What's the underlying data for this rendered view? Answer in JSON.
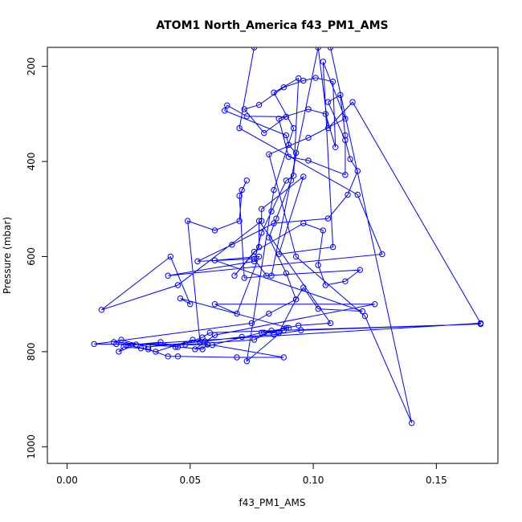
{
  "chart_data": {
    "type": "line",
    "title": "ATOM1 North_America f43_PM1_AMS",
    "xlabel": "f43_PM1_AMS",
    "ylabel": "Pressure (mbar)",
    "xlim": [
      -0.008,
      0.175
    ],
    "ylim": [
      1035,
      160
    ],
    "y_reversed": true,
    "xticks": [
      0.0,
      0.05,
      0.1,
      0.15
    ],
    "xtick_labels": [
      "0.00",
      "0.05",
      "0.10",
      "0.15"
    ],
    "yticks": [
      200,
      400,
      600,
      800,
      1000
    ],
    "ytick_labels": [
      "200",
      "400",
      "600",
      "800",
      "1000"
    ],
    "grid": false,
    "legend": "none",
    "marker": "open-circle",
    "color": "#0000ff",
    "series": [
      {
        "points": [
          [
            0.054,
            780
          ],
          [
            0.049,
            525
          ],
          [
            0.06,
            545
          ],
          [
            0.07,
            525
          ],
          [
            0.071,
            460
          ],
          [
            0.073,
            440
          ],
          [
            0.07,
            472
          ],
          [
            0.072,
            645
          ],
          [
            0.083,
            640
          ],
          [
            0.102,
            160
          ],
          [
            0.106,
            330
          ],
          [
            0.116,
            275
          ],
          [
            0.168,
            740
          ],
          [
            0.024,
            786
          ],
          [
            0.033,
            795
          ],
          [
            0.041,
            810
          ],
          [
            0.045,
            810
          ],
          [
            0.069,
            812
          ],
          [
            0.088,
            812
          ],
          [
            0.059,
            786
          ],
          [
            0.011,
            784
          ],
          [
            0.075,
            740
          ],
          [
            0.082,
            720
          ],
          [
            0.093,
            690
          ],
          [
            0.096,
            665
          ],
          [
            0.102,
            710
          ],
          [
            0.12,
            715
          ],
          [
            0.06,
            608
          ],
          [
            0.078,
            600
          ],
          [
            0.069,
            720
          ],
          [
            0.06,
            700
          ],
          [
            0.125,
            700
          ],
          [
            0.06,
            765
          ],
          [
            0.052,
            795
          ],
          [
            0.079,
            760
          ],
          [
            0.09,
            750
          ],
          [
            0.046,
            688
          ],
          [
            0.05,
            700
          ],
          [
            0.042,
            600
          ],
          [
            0.014,
            712
          ],
          [
            0.045,
            660
          ],
          [
            0.079,
            525
          ],
          [
            0.079,
            500
          ],
          [
            0.096,
            432
          ],
          [
            0.086,
            595
          ],
          [
            0.108,
            580
          ],
          [
            0.104,
            190
          ],
          [
            0.113,
            310
          ],
          [
            0.098,
            350
          ],
          [
            0.082,
            385
          ],
          [
            0.093,
            600
          ],
          [
            0.121,
            725
          ],
          [
            0.14,
            950
          ],
          [
            0.107,
            160
          ],
          [
            0.076,
            160
          ],
          [
            0.07,
            330
          ],
          [
            0.118,
            470
          ],
          [
            0.128,
            595
          ],
          [
            0.041,
            640
          ],
          [
            0.076,
            610
          ],
          [
            0.079,
            550
          ],
          [
            0.083,
            505
          ],
          [
            0.089,
            440
          ],
          [
            0.092,
            430
          ],
          [
            0.094,
            225
          ],
          [
            0.084,
            255
          ],
          [
            0.092,
            330
          ],
          [
            0.084,
            460
          ],
          [
            0.073,
            820
          ],
          [
            0.089,
            750
          ],
          [
            0.094,
            745
          ],
          [
            0.107,
            740
          ],
          [
            0.078,
            525
          ],
          [
            0.078,
            580
          ],
          [
            0.068,
            640
          ],
          [
            0.076,
            590
          ],
          [
            0.096,
            530
          ],
          [
            0.104,
            545
          ],
          [
            0.102,
            618
          ],
          [
            0.105,
            660
          ],
          [
            0.113,
            652
          ],
          [
            0.119,
            628
          ],
          [
            0.081,
            640
          ],
          [
            0.076,
            605
          ],
          [
            0.053,
            610
          ],
          [
            0.067,
            575
          ],
          [
            0.084,
            530
          ],
          [
            0.106,
            520
          ],
          [
            0.114,
            470
          ],
          [
            0.118,
            420
          ],
          [
            0.115,
            395
          ],
          [
            0.113,
            355
          ],
          [
            0.106,
            275
          ],
          [
            0.111,
            260
          ],
          [
            0.113,
            345
          ],
          [
            0.113,
            428
          ],
          [
            0.098,
            398
          ],
          [
            0.09,
            390
          ],
          [
            0.086,
            310
          ],
          [
            0.098,
            290
          ],
          [
            0.105,
            300
          ],
          [
            0.109,
            370
          ],
          [
            0.108,
            232
          ],
          [
            0.101,
            224
          ],
          [
            0.096,
            230
          ],
          [
            0.088,
            244
          ],
          [
            0.078,
            281
          ],
          [
            0.072,
            290
          ],
          [
            0.08,
            340
          ],
          [
            0.089,
            306
          ],
          [
            0.073,
            305
          ],
          [
            0.065,
            282
          ],
          [
            0.064,
            293
          ],
          [
            0.089,
            345
          ],
          [
            0.09,
            365
          ],
          [
            0.093,
            382
          ],
          [
            0.091,
            440
          ],
          [
            0.085,
            520
          ],
          [
            0.082,
            560
          ],
          [
            0.089,
            635
          ],
          [
            0.093,
            690
          ],
          [
            0.086,
            760
          ],
          [
            0.08,
            760
          ],
          [
            0.088,
            755
          ],
          [
            0.058,
            760
          ],
          [
            0.055,
            770
          ],
          [
            0.044,
            790
          ],
          [
            0.038,
            780
          ],
          [
            0.028,
            785
          ],
          [
            0.021,
            800
          ],
          [
            0.023,
            790
          ],
          [
            0.03,
            793
          ],
          [
            0.036,
            800
          ],
          [
            0.051,
            775
          ],
          [
            0.057,
            785
          ],
          [
            0.055,
            795
          ],
          [
            0.045,
            790
          ],
          [
            0.019,
            780
          ],
          [
            0.022,
            775
          ],
          [
            0.033,
            790
          ],
          [
            0.056,
            778
          ],
          [
            0.071,
            769
          ],
          [
            0.084,
            764
          ],
          [
            0.095,
            755
          ],
          [
            0.168,
            742
          ],
          [
            0.083,
            756
          ],
          [
            0.076,
            775
          ],
          [
            0.048,
            785
          ],
          [
            0.02,
            784
          ]
        ]
      }
    ]
  }
}
